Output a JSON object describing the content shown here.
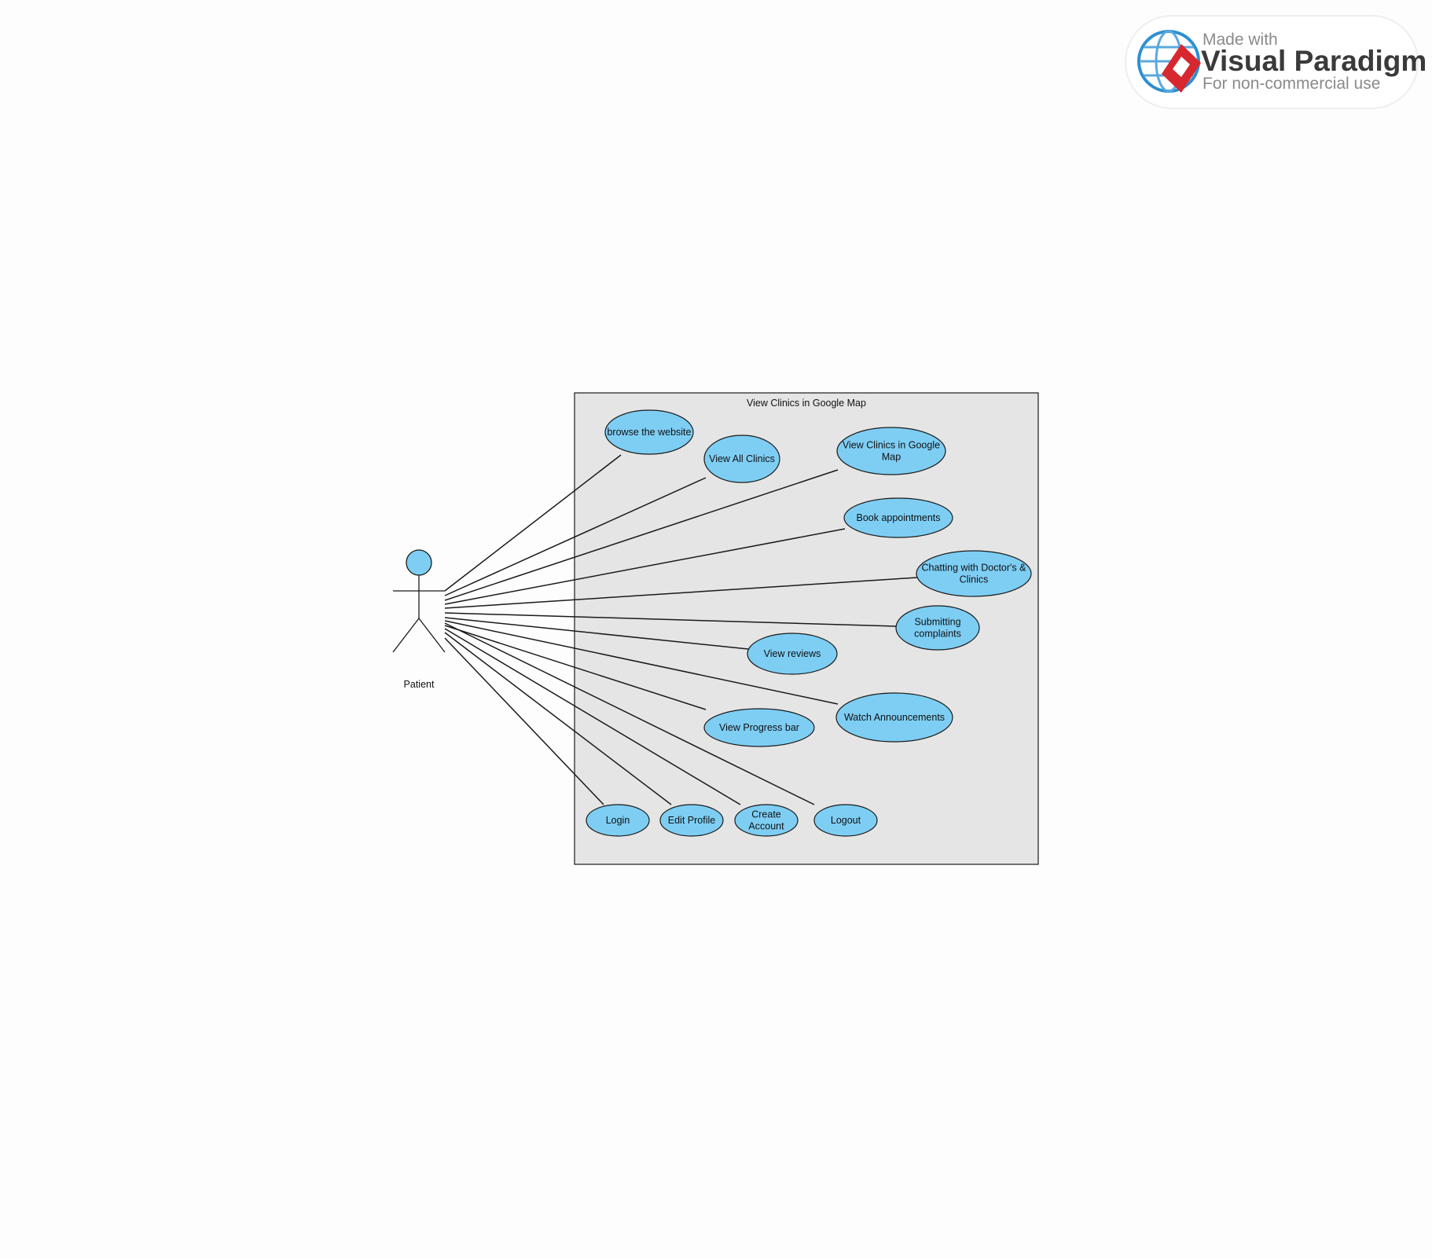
{
  "system": {
    "title": "View Clinics in Google Map"
  },
  "actor": {
    "name": "Patient"
  },
  "use_cases": [
    {
      "id": "browse",
      "lines": [
        "browse the website"
      ]
    },
    {
      "id": "view-all-clinics",
      "lines": [
        "View All Clinics"
      ]
    },
    {
      "id": "view-clinics-map",
      "lines": [
        "View Clinics in Google",
        "Map"
      ]
    },
    {
      "id": "book-appointments",
      "lines": [
        "Book appointments"
      ]
    },
    {
      "id": "chatting",
      "lines": [
        "Chatting with Doctor's &",
        "Clinics"
      ]
    },
    {
      "id": "submitting-complaints",
      "lines": [
        "Submitting",
        "complaints"
      ]
    },
    {
      "id": "view-reviews",
      "lines": [
        "View reviews"
      ]
    },
    {
      "id": "watch-announcements",
      "lines": [
        "Watch Announcements"
      ]
    },
    {
      "id": "view-progress-bar",
      "lines": [
        "View Progress bar"
      ]
    },
    {
      "id": "login",
      "lines": [
        "Login"
      ]
    },
    {
      "id": "edit-profile",
      "lines": [
        "Edit Profile"
      ]
    },
    {
      "id": "create-account",
      "lines": [
        "Create",
        "Account"
      ]
    },
    {
      "id": "logout",
      "lines": [
        "Logout"
      ]
    }
  ],
  "watermark": {
    "line1": "Made with",
    "line2": "Visual Paradigm",
    "line3": "For non-commercial use"
  },
  "colors": {
    "use_case_fill": "#7ecef4",
    "system_fill": "#e5e5e5",
    "stroke": "#1a1a1a"
  }
}
